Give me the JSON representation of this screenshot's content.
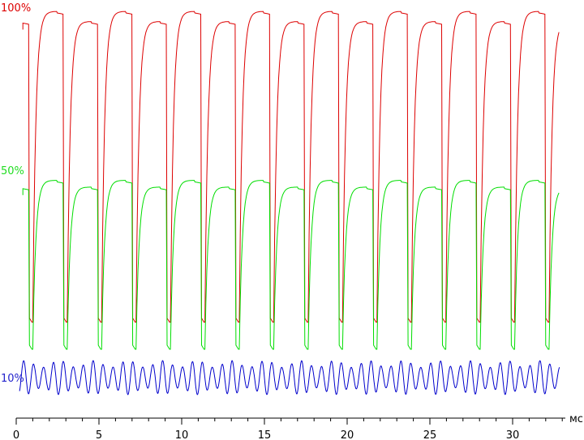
{
  "chart_data": {
    "type": "line",
    "title": "",
    "xlabel": "мс",
    "ylabel": "",
    "x_range": [
      0,
      33
    ],
    "x_ticks": [
      0,
      5,
      10,
      15,
      20,
      25,
      30
    ],
    "x_tick_labels": [
      "0",
      "5",
      "10",
      "15",
      "20",
      "25",
      "30"
    ],
    "minor_tick_step": 1,
    "flicker_period_ms": 2.08,
    "series": [
      {
        "name": "100%",
        "color": "#dd0000",
        "label_color": "#dd0000",
        "high_level": 100,
        "low_level": 8,
        "high_alt": 97,
        "label_value": 100
      },
      {
        "name": "50%",
        "color": "#00dd00",
        "label_color": "#22dd22",
        "high_level": 50,
        "low_level": 0,
        "high_alt": 48,
        "label_value": 50
      },
      {
        "name": "10%",
        "color": "#0000cc",
        "label_color": "#2222cc",
        "mean_level": 6,
        "amplitude": 4,
        "ripple_period_ms": 0.6,
        "label_value": 10
      }
    ],
    "grid": false,
    "legend": "none"
  }
}
